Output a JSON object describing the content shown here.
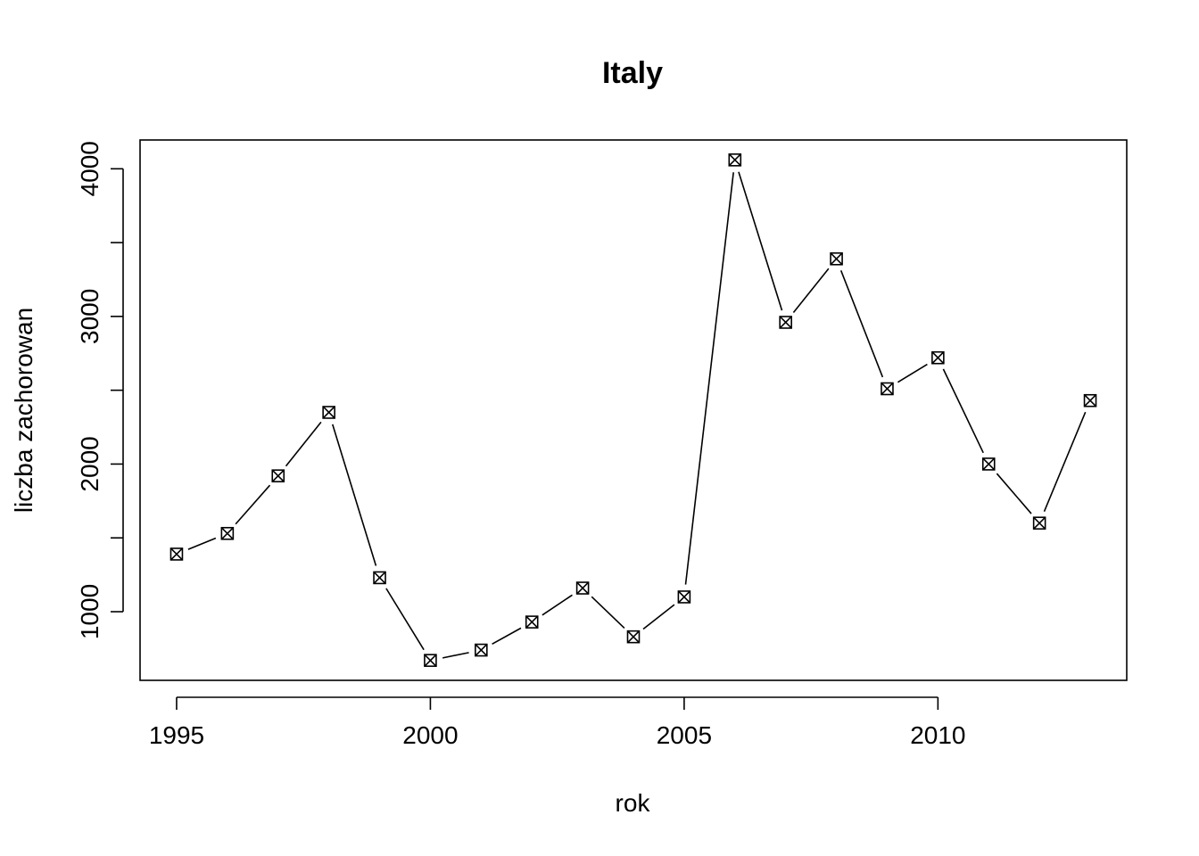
{
  "chart_data": {
    "type": "line",
    "title": "Italy",
    "xlabel": "rok",
    "ylabel": "liczba zachorowan",
    "x": [
      1995,
      1996,
      1997,
      1998,
      1999,
      2000,
      2001,
      2002,
      2003,
      2004,
      2005,
      2006,
      2007,
      2008,
      2009,
      2010,
      2011,
      2012,
      2013
    ],
    "series": [
      {
        "values": [
          1390,
          1530,
          1920,
          2350,
          1230,
          670,
          740,
          930,
          1160,
          830,
          1100,
          4060,
          2960,
          3390,
          2510,
          2720,
          2000,
          1600,
          2430
        ]
      }
    ],
    "xlim": [
      1994.28,
      2013.72
    ],
    "ylim": [
      535,
      4195
    ],
    "x_ticks": [
      "1995",
      "2000",
      "2005",
      "2010"
    ],
    "y_ticks": [
      "1000",
      "2000",
      "3000",
      "4000"
    ],
    "y_minor_ticks": [
      1500,
      2500,
      3500
    ],
    "marker": "boxed-x",
    "line_style": "segments-with-gaps",
    "grid": false,
    "legend": "none"
  }
}
